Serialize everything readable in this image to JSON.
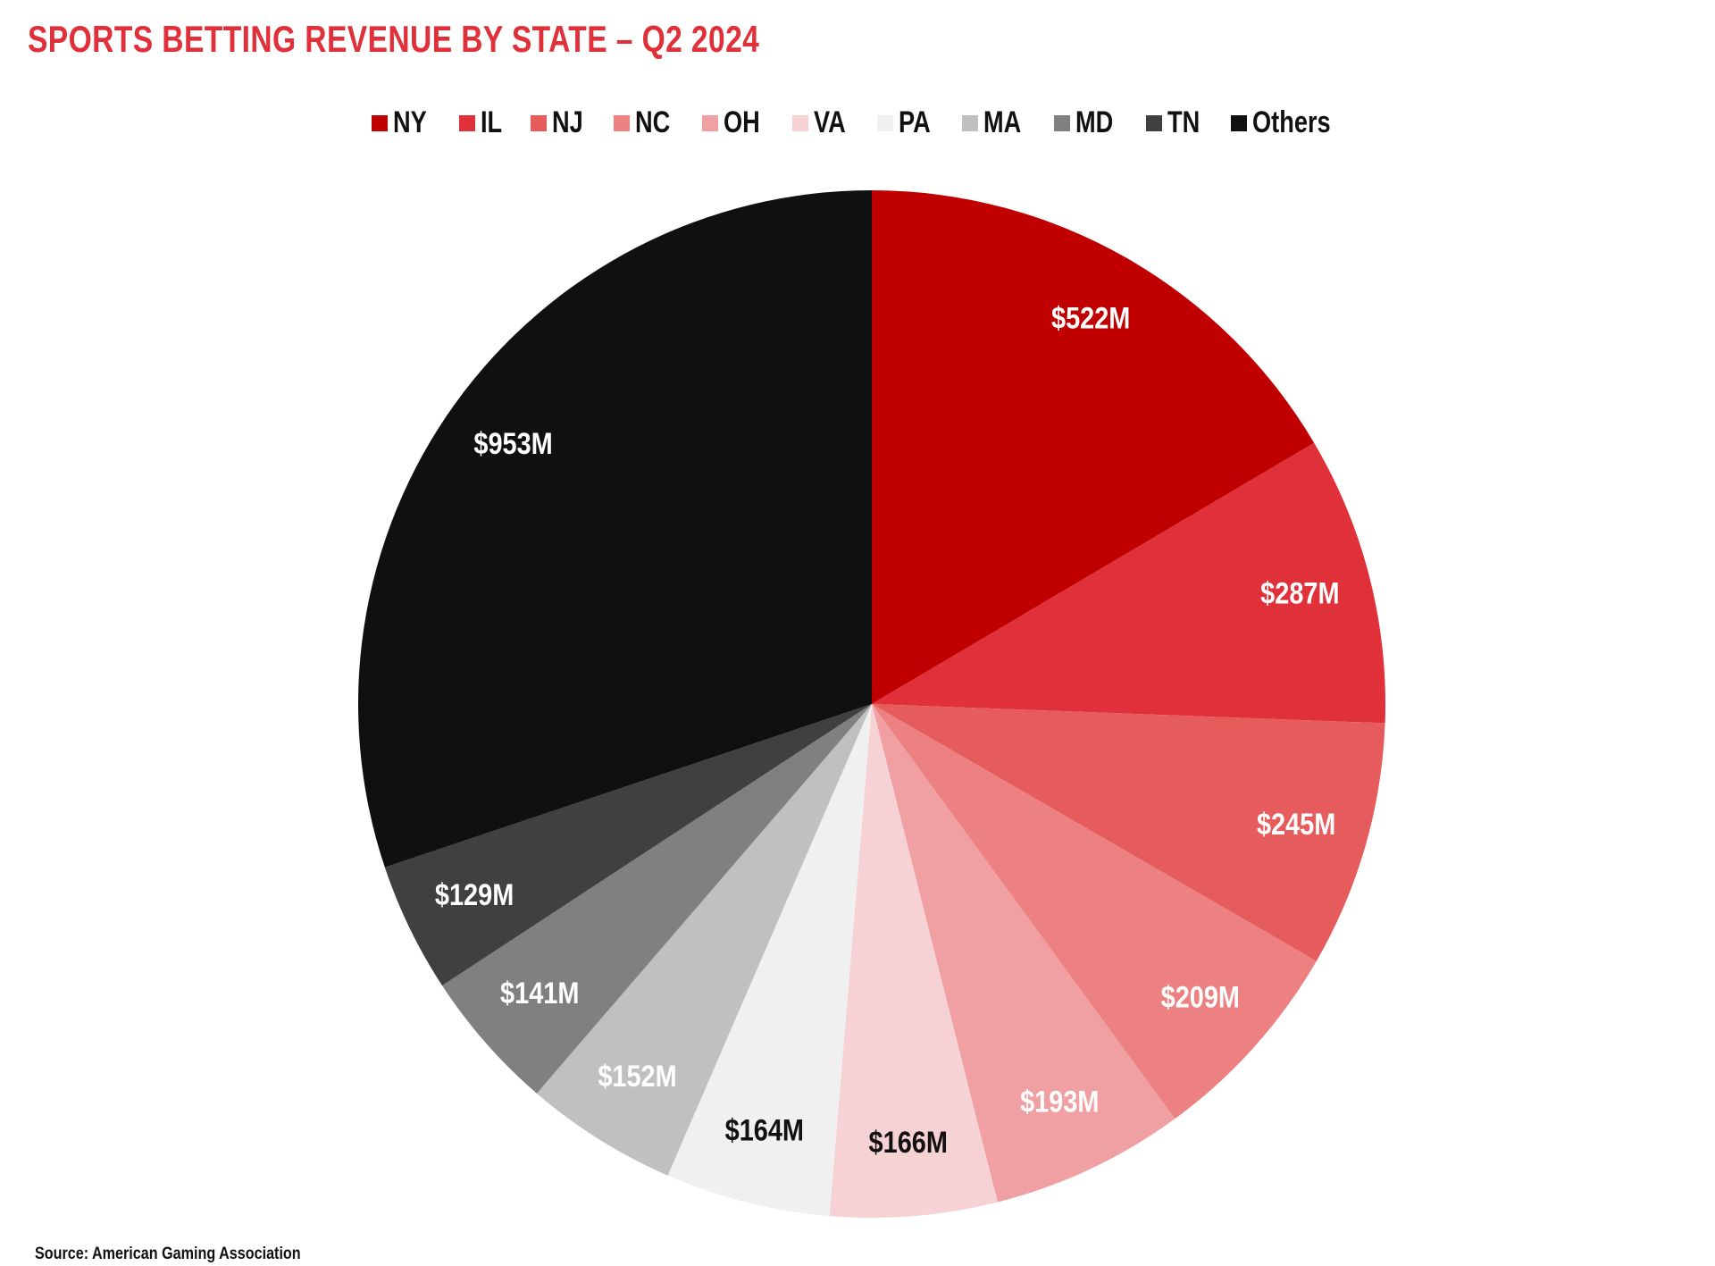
{
  "chart_data": {
    "type": "pie",
    "title": "SPORTS BETTING REVENUE BY STATE – Q2 2024",
    "categories": [
      "NY",
      "IL",
      "NJ",
      "NC",
      "OH",
      "VA",
      "PA",
      "MA",
      "MD",
      "TN",
      "Others"
    ],
    "values": [
      522,
      287,
      245,
      209,
      193,
      166,
      164,
      152,
      141,
      129,
      953
    ],
    "labels": [
      "$522M",
      "$287M",
      "$245M",
      "$209M",
      "$193M",
      "$166M",
      "$164M",
      "$152M",
      "$141M",
      "$129M",
      "$953M"
    ],
    "colors": [
      "#c00000",
      "#e0303a",
      "#e65c5c",
      "#ed8080",
      "#f0a0a2",
      "#f7d2d4",
      "#f0f0f0",
      "#c0c0c0",
      "#808080",
      "#404040",
      "#101010"
    ],
    "label_colors": [
      "#ffffff",
      "#ffffff",
      "#ffffff",
      "#ffffff",
      "#ffffff",
      "#111111",
      "#111111",
      "#ffffff",
      "#ffffff",
      "#ffffff",
      "#ffffff"
    ],
    "units": "USD millions",
    "start": "12 o'clock, clockwise",
    "legend_position": "top-center"
  },
  "source": "Source: American Gaming Association"
}
